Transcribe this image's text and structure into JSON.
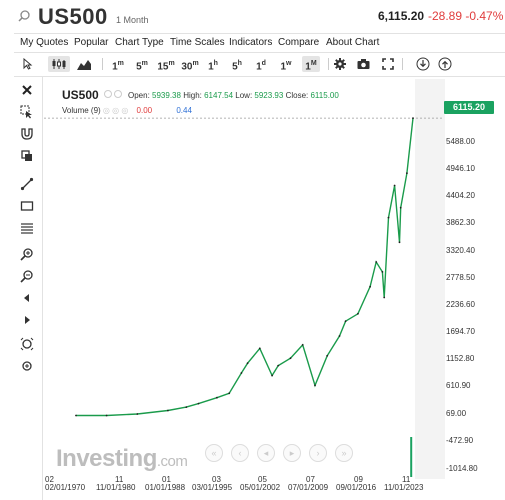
{
  "header": {
    "symbol": "US500",
    "period": "1 Month",
    "price": "6,115.20",
    "change": "-28.89 -0.47%"
  },
  "menu": [
    "My Quotes",
    "Popular",
    "Chart Type",
    "Time Scales",
    "Indicators",
    "Compare",
    "About Chart"
  ],
  "timeframes": [
    {
      "n": "1",
      "u": "m"
    },
    {
      "n": "5",
      "u": "m"
    },
    {
      "n": "15",
      "u": "m"
    },
    {
      "n": "30",
      "u": "m"
    },
    {
      "n": "1",
      "u": "h"
    },
    {
      "n": "5",
      "u": "h"
    },
    {
      "n": "1",
      "u": "d"
    },
    {
      "n": "1",
      "u": "w"
    },
    {
      "n": "1",
      "u": "M"
    }
  ],
  "active_timeframe": "1M",
  "legend": {
    "symbol": "US500",
    "ohlc": {
      "open_label": "Open:",
      "open": "5939.38",
      "high_label": "High:",
      "high": "6147.54",
      "low_label": "Low:",
      "low": "5923.93",
      "close_label": "Close:",
      "close": "6115.00"
    },
    "volume_label": "Volume (9)",
    "volume_a": "0.00",
    "volume_b": "0.44"
  },
  "current_price_box": "6115.20",
  "watermark": {
    "brand": "Investing",
    "domain": ".com"
  },
  "chart_data": {
    "type": "line",
    "title": "",
    "xlabel": "",
    "ylabel": "",
    "ylim": [
      -1014.8,
      6300
    ],
    "y_ticks": [
      "5488.00",
      "4946.10",
      "4404.20",
      "3862.30",
      "3320.40",
      "2778.50",
      "2236.60",
      "1694.70",
      "1152.80",
      "610.90",
      "69.00",
      "-472.90",
      "-1014.80"
    ],
    "x_labels_top": [
      "02",
      "11",
      "01",
      "03",
      "05",
      "07",
      "09",
      "11"
    ],
    "x_labels": [
      "02/01/1970",
      "11/01/1980",
      "01/01/1988",
      "03/01/1995",
      "05/01/2002",
      "07/01/2009",
      "09/01/2016",
      "11/01/2023"
    ],
    "series": [
      {
        "x": [
          1970,
          1975,
          1980,
          1985,
          1988,
          1990,
          1993,
          1995,
          1997,
          1998,
          2000,
          2002,
          2003,
          2005,
          2007,
          2009,
          2011,
          2013,
          2014,
          2016,
          2018,
          2019,
          2020,
          2020.3,
          2021,
          2022,
          2022.8,
          2023,
          2024,
          2025
        ],
        "values": [
          90,
          90,
          120,
          190,
          260,
          330,
          450,
          540,
          950,
          1150,
          1450,
          900,
          1100,
          1250,
          1520,
          700,
          1300,
          1700,
          2000,
          2150,
          2700,
          3200,
          3000,
          2480,
          4100,
          4750,
          3600,
          4300,
          5000,
          6115
        ]
      }
    ],
    "volume": [
      {
        "x": 2020.3,
        "value": 0.44
      }
    ],
    "grid": false,
    "line_color": "#1a9b4b"
  }
}
